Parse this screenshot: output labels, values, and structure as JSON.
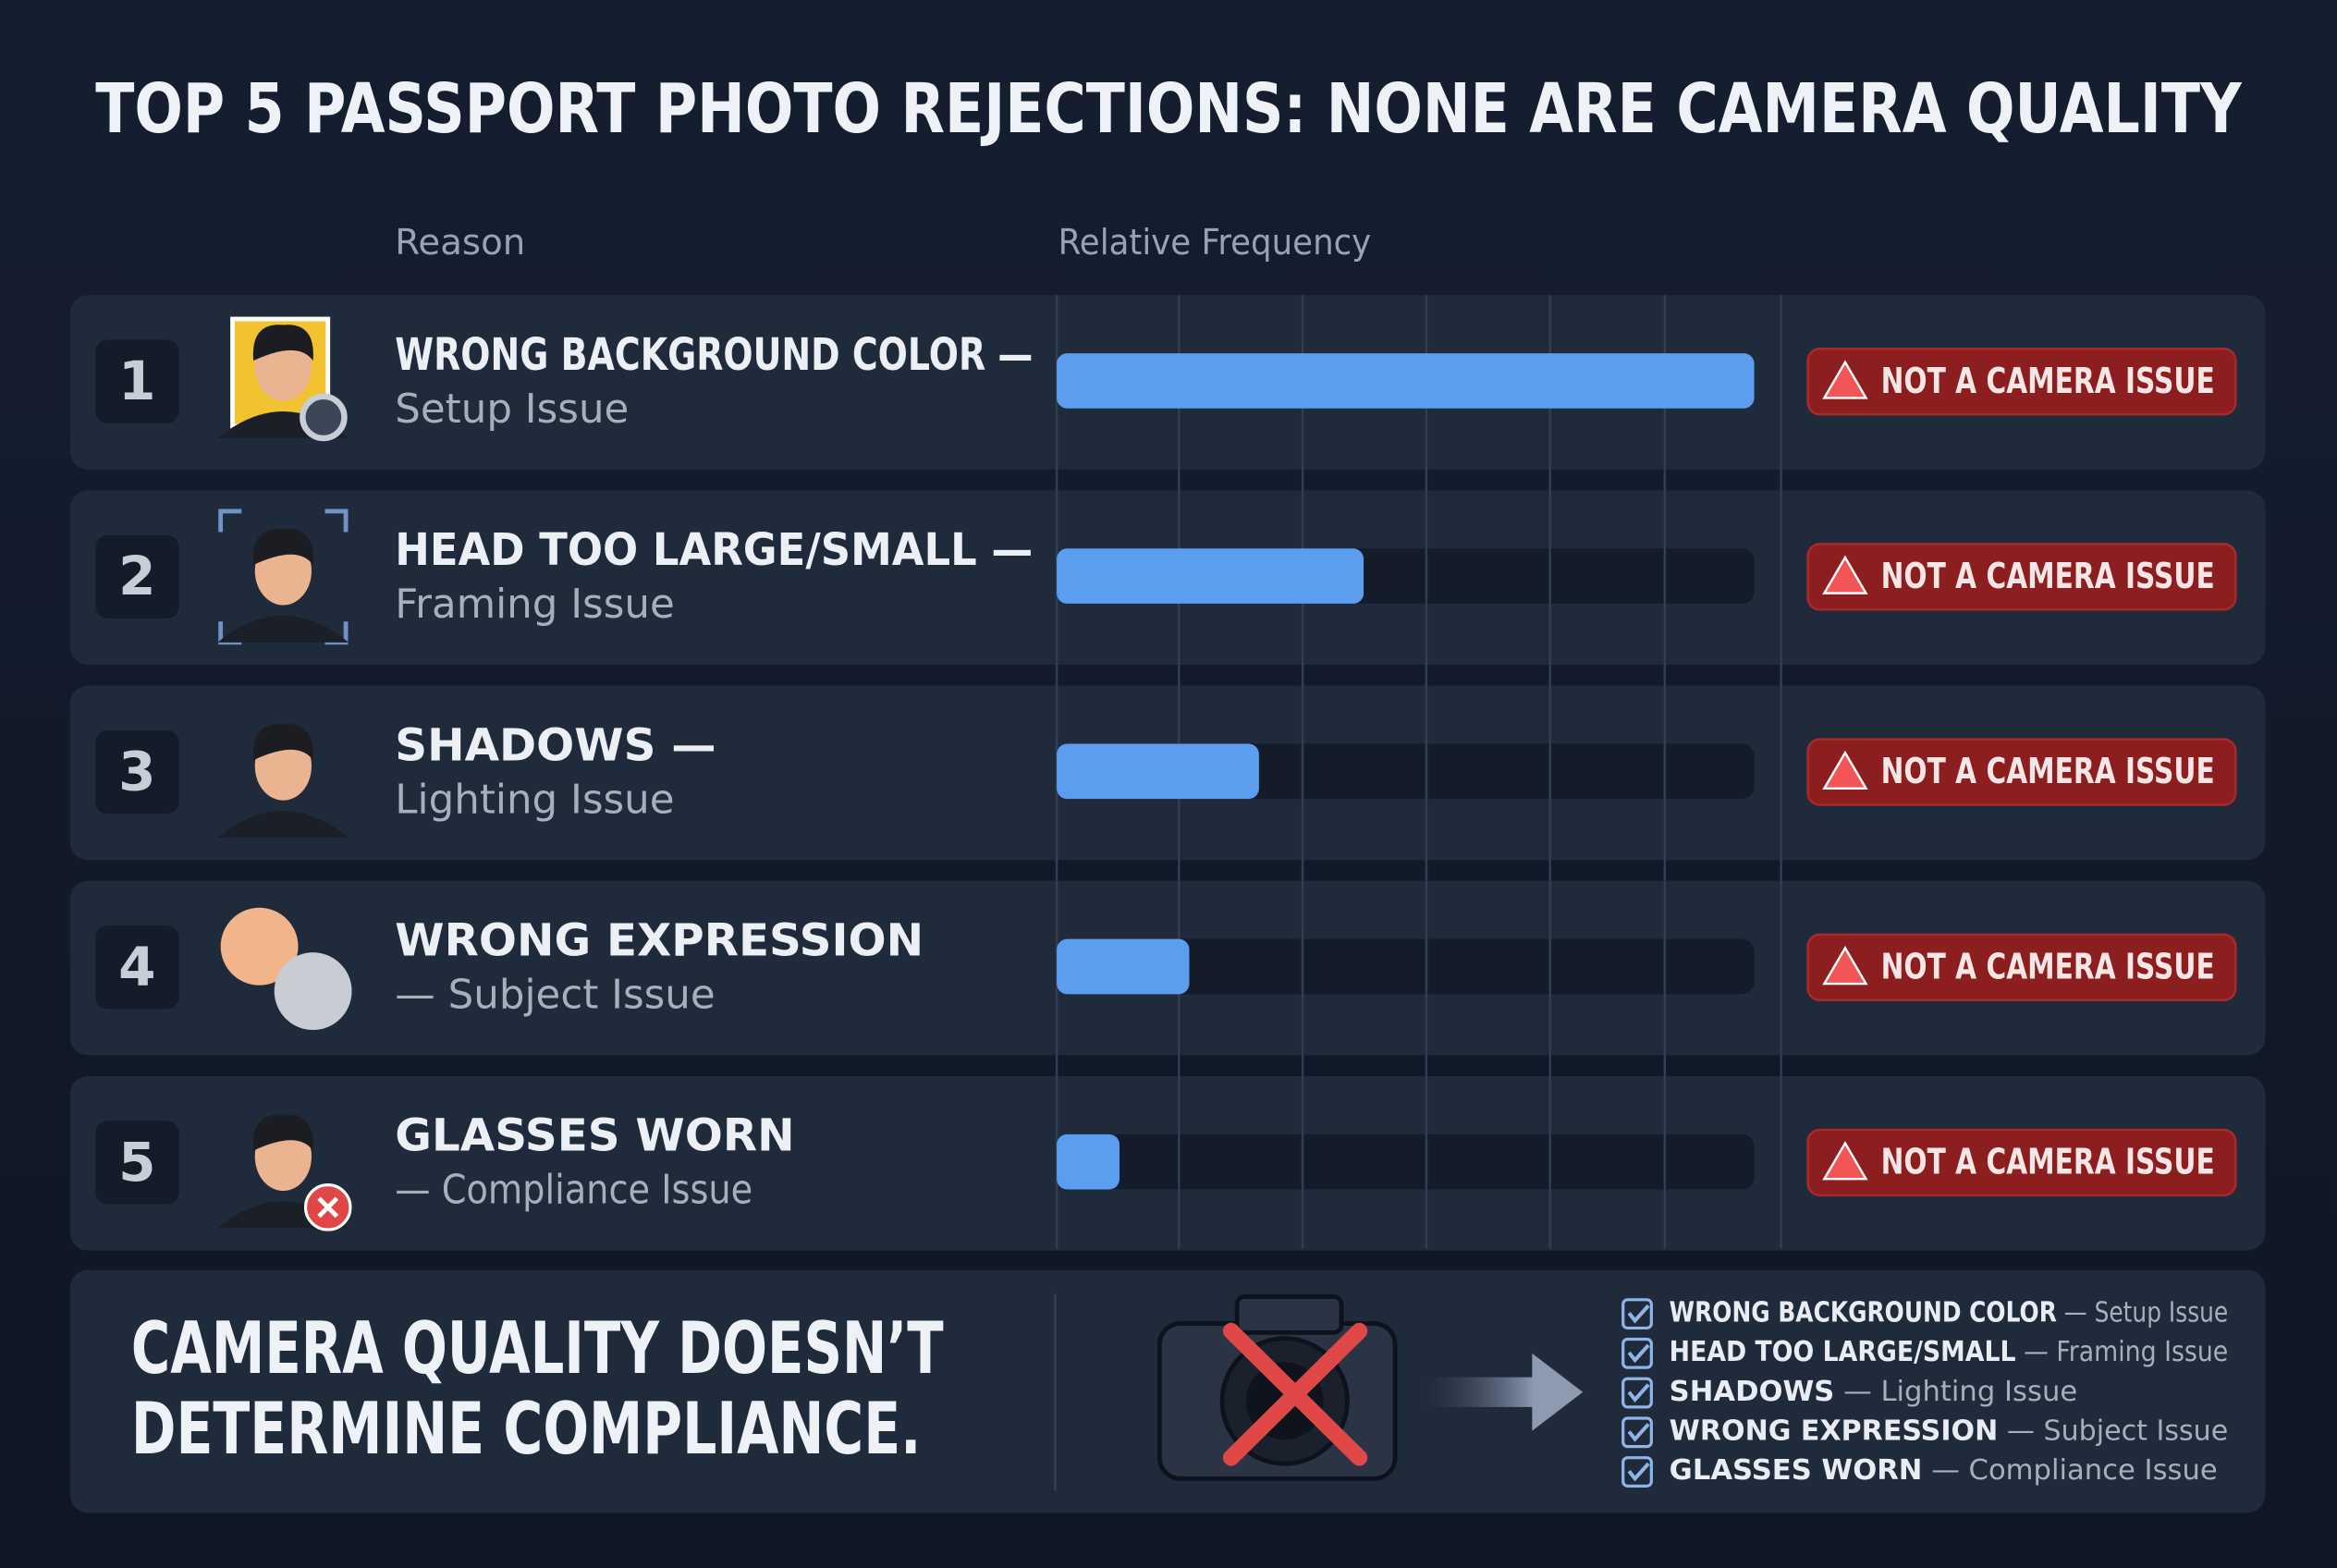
{
  "title": "TOP 5 PASSPORT PHOTO REJECTIONS: NONE ARE CAMERA QUALITY",
  "header": {
    "reason": "Reason",
    "frequency": "Relative Frequency"
  },
  "chart_data": {
    "type": "bar",
    "orientation": "horizontal",
    "ranks": [
      "1",
      "2",
      "3",
      "4",
      "5"
    ],
    "categories": [
      "WRONG BACKGROUND COLOR —",
      "HEAD TOO LARGE/SMALL —",
      "SHADOWS —",
      "WRONG EXPRESSION",
      "GLASSES WORN"
    ],
    "subtitles": [
      "Setup Issue",
      "Framing Issue",
      "Lighting Issue",
      "— Subject Issue",
      "— Compliance Issue"
    ],
    "badges": [
      "NOT A CAMERA ISSUE",
      "NOT A CAMERA ISSUE",
      "NOT A CAMERA ISSUE",
      "NOT A CAMERA ISSUE",
      "NOT A CAMERA ISSUE"
    ],
    "values": [
      100,
      44,
      29,
      19,
      9
    ],
    "xlim": [
      0,
      100
    ],
    "color": "#5b9ef0"
  },
  "footer": {
    "headline": [
      "CAMERA QUALITY DOESN’T",
      "DETERMINE COMPLIANCE."
    ],
    "checklist": [
      {
        "label": "WRONG BACKGROUND COLOR",
        "detail": "— Setup Issue"
      },
      {
        "label": "HEAD TOO LARGE/SMALL",
        "detail": "— Framing Issue"
      },
      {
        "label": "SHADOWS",
        "detail": "— Lighting Issue"
      },
      {
        "label": "WRONG EXPRESSION",
        "detail": "— Subject Issue"
      },
      {
        "label": "GLASSES WORN",
        "detail": "— Compliance Issue"
      }
    ]
  }
}
